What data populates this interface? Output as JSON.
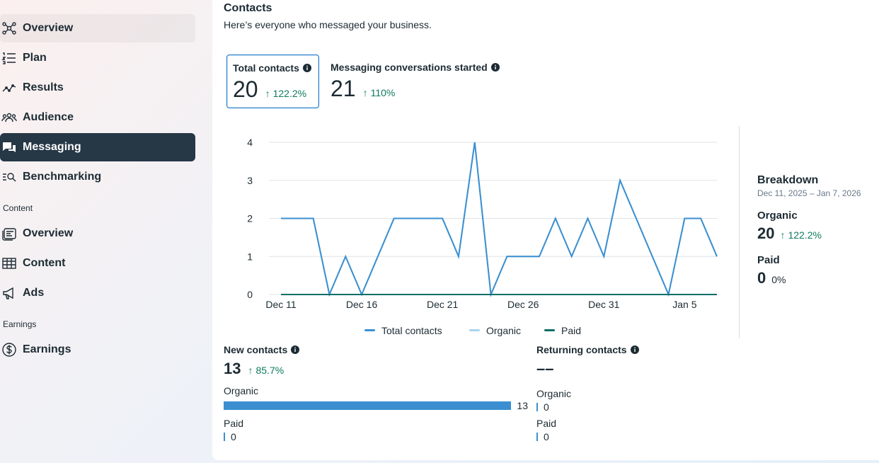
{
  "sidebar": {
    "items": [
      {
        "label": "Overview",
        "icon": "network-icon"
      },
      {
        "label": "Plan",
        "icon": "list-icon"
      },
      {
        "label": "Results",
        "icon": "trend-icon"
      },
      {
        "label": "Audience",
        "icon": "people-icon"
      },
      {
        "label": "Messaging",
        "icon": "chat-icon"
      },
      {
        "label": "Benchmarking",
        "icon": "benchmark-icon"
      },
      {
        "label": "Overview",
        "icon": "content-overview-icon"
      },
      {
        "label": "Content",
        "icon": "table-icon"
      },
      {
        "label": "Ads",
        "icon": "megaphone-icon"
      },
      {
        "label": "Earnings",
        "icon": "dollar-icon"
      }
    ],
    "sections": {
      "content": "Content",
      "earnings": "Earnings"
    }
  },
  "main": {
    "title": "Contacts",
    "subtitle": "Here’s everyone who messaged your business.",
    "metrics": [
      {
        "label": "Total contacts",
        "value": "20",
        "delta": "122.2%"
      },
      {
        "label": "Messaging conversations started",
        "value": "21",
        "delta": "110%"
      }
    ],
    "breakdown": {
      "title": "Breakdown",
      "date_range": "Dec 11, 2025 – Jan 7, 2026",
      "organic_label": "Organic",
      "organic_value": "20",
      "organic_delta": "122.2%",
      "paid_label": "Paid",
      "paid_value": "0",
      "paid_pct": "0%"
    },
    "new_contacts": {
      "title": "New contacts",
      "value": "13",
      "delta": "85.7%",
      "organic_label": "Organic",
      "organic_value": "13",
      "paid_label": "Paid",
      "paid_value": "0"
    },
    "returning_contacts": {
      "title": "Returning contacts",
      "value": "––",
      "organic_label": "Organic",
      "organic_value": "0",
      "paid_label": "Paid",
      "paid_value": "0"
    }
  },
  "colors": {
    "total": "#3b8fd0",
    "organic": "#a9d4ec",
    "paid": "#0b6e68",
    "active_nav": "#263746",
    "positive": "#0f7a5e"
  },
  "chart_data": {
    "type": "line",
    "x": [
      "Dec 11",
      "Dec 12",
      "Dec 13",
      "Dec 14",
      "Dec 15",
      "Dec 16",
      "Dec 17",
      "Dec 18",
      "Dec 19",
      "Dec 20",
      "Dec 21",
      "Dec 22",
      "Dec 23",
      "Dec 24",
      "Dec 25",
      "Dec 26",
      "Dec 27",
      "Dec 28",
      "Dec 29",
      "Dec 30",
      "Dec 31",
      "Jan 1",
      "Jan 2",
      "Jan 3",
      "Jan 4",
      "Jan 5",
      "Jan 6",
      "Jan 7"
    ],
    "x_tick_labels": [
      "Dec 11",
      "Dec 16",
      "Dec 21",
      "Dec 26",
      "Dec 31",
      "Jan 5"
    ],
    "y_ticks": [
      "0",
      "1",
      "2",
      "3",
      "4"
    ],
    "ylim": [
      0,
      4
    ],
    "grid": true,
    "legend_position": "bottom",
    "series": [
      {
        "name": "Total contacts",
        "values": [
          2,
          2,
          2,
          0,
          1,
          0,
          1,
          2,
          2,
          2,
          2,
          1,
          4,
          0,
          1,
          1,
          1,
          2,
          1,
          2,
          1,
          3,
          2,
          1,
          0,
          2,
          2,
          1
        ]
      },
      {
        "name": "Organic",
        "values": [
          2,
          2,
          2,
          0,
          1,
          0,
          1,
          2,
          2,
          2,
          2,
          1,
          4,
          0,
          1,
          1,
          1,
          2,
          1,
          2,
          1,
          3,
          2,
          1,
          0,
          2,
          2,
          1
        ]
      },
      {
        "name": "Paid",
        "values": [
          0,
          0,
          0,
          0,
          0,
          0,
          0,
          0,
          0,
          0,
          0,
          0,
          0,
          0,
          0,
          0,
          0,
          0,
          0,
          0,
          0,
          0,
          0,
          0,
          0,
          0,
          0,
          0
        ]
      }
    ]
  }
}
